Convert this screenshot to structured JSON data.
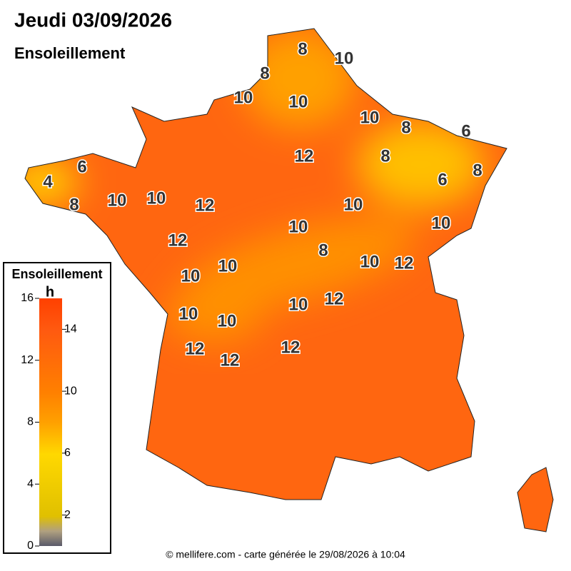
{
  "header": {
    "title": "Jeudi 03/09/2026",
    "subtitle": "Ensoleillement"
  },
  "legend": {
    "title": "Ensoleillement",
    "unit": "h",
    "range": [
      0,
      16
    ],
    "ticks": [
      0,
      2,
      4,
      6,
      8,
      10,
      12,
      14,
      16
    ]
  },
  "contour_labels": [
    8,
    10,
    8,
    10,
    10,
    10,
    8,
    6,
    12,
    8,
    6,
    4,
    8,
    6,
    10,
    10,
    8,
    12,
    10,
    10,
    10,
    12,
    8,
    10,
    12,
    10,
    10,
    12,
    10,
    10,
    10,
    12,
    12,
    12
  ],
  "footer": "© mellifere.com - carte générée le 29/08/2026 à 10:04"
}
